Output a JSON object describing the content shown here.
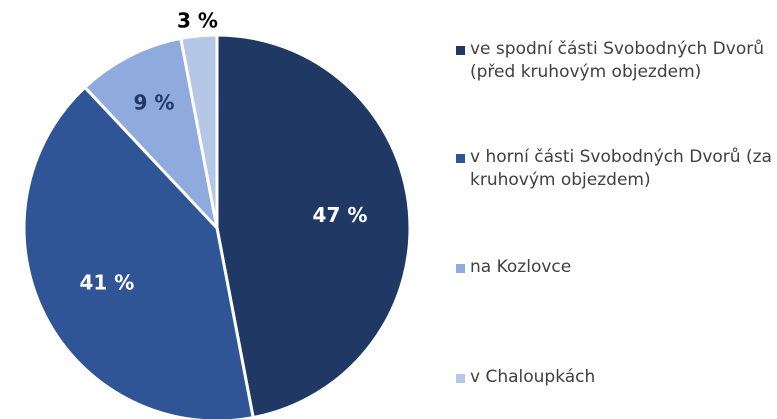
{
  "chart_data": {
    "type": "pie",
    "categories": [
      "ve spodní části Svobodných Dvorů (před kruhovým objezdem)",
      "v horní části Svobodných Dvorů (za kruhovým objezdem)",
      "na Kozlovce",
      "v Chaloupkách"
    ],
    "values": [
      47,
      41,
      9,
      3
    ],
    "value_labels": [
      "47 %",
      "41 %",
      "9 %",
      "3 %"
    ],
    "colors": [
      "#1f3864",
      "#2f5597",
      "#8faadc",
      "#b4c7e7"
    ],
    "legend": "right"
  }
}
